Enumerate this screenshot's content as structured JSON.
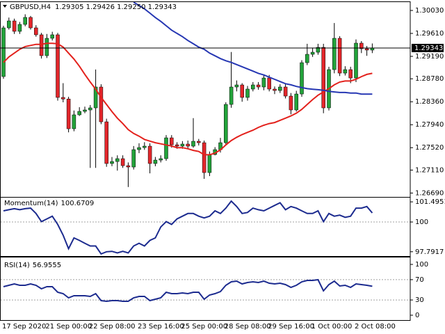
{
  "chart_data": [
    {
      "type": "candlestick",
      "title": "GBPUSD,H4",
      "ohlc_label": "1.29305 1.29426 1.29250 1.29343",
      "categories": [
        "17 Sep 2020",
        null,
        null,
        null,
        null,
        null,
        null,
        null,
        "21 Sep 00:00",
        null,
        null,
        null,
        null,
        null,
        null,
        null,
        "22 Sep 08:00",
        null,
        null,
        null,
        null,
        null,
        null,
        null,
        null,
        "23 Sep 16:00",
        null,
        null,
        null,
        null,
        null,
        null,
        null,
        "25 Sep 00:00",
        null,
        null,
        null,
        null,
        null,
        null,
        null,
        "28 Sep 08:00",
        null,
        null,
        null,
        null,
        null,
        null,
        null,
        "29 Sep 16:00",
        null,
        null,
        null,
        null,
        null,
        null,
        null,
        "1 Oct 00:00",
        null,
        null,
        null,
        null,
        null,
        null,
        null,
        "2 Oct 08:00",
        null,
        null,
        null
      ],
      "open": [
        1.28821,
        1.29712,
        1.29839,
        1.29648,
        1.29775,
        1.29903,
        1.29712,
        1.29585,
        1.29203,
        1.29521,
        1.29585,
        1.28439,
        1.2841,
        1.27866,
        1.28121,
        1.28184,
        1.2821,
        1.28248,
        1.2863,
        1.27993,
        1.2723,
        1.27267,
        1.27319,
        1.27191,
        1.27166,
        1.27484,
        1.27522,
        1.27548,
        1.2723,
        1.27293,
        1.27319,
        1.277,
        1.27573,
        1.27548,
        1.27586,
        1.27548,
        1.27637,
        1.27611,
        1.27064,
        1.27395,
        1.27484,
        1.27611,
        1.28311,
        1.2863,
        1.28668,
        1.28439,
        1.28592,
        1.28668,
        1.2863,
        1.28795,
        1.28592,
        1.28566,
        1.2863,
        1.28464,
        1.2821,
        1.28502,
        1.29075,
        1.29228,
        1.29266,
        1.29355,
        1.28248,
        1.28948,
        1.29521,
        1.28884,
        1.28948,
        1.28795,
        1.29432,
        1.2933,
        1.29305
      ],
      "high": [
        1.2975,
        1.299,
        1.2988,
        1.2982,
        1.2996,
        1.2993,
        1.2976,
        1.2962,
        1.296,
        1.2964,
        1.2962,
        1.287,
        1.2845,
        1.282,
        1.2826,
        1.2827,
        1.283,
        1.2895,
        1.2868,
        1.2805,
        1.2735,
        1.2738,
        1.2738,
        1.2725,
        1.2755,
        1.276,
        1.2762,
        1.276,
        1.2735,
        1.2738,
        1.2775,
        1.2775,
        1.2762,
        1.2764,
        1.2765,
        1.2806,
        1.2768,
        1.2765,
        1.2745,
        1.2753,
        1.277,
        1.2835,
        1.2927,
        1.2875,
        1.287,
        1.2865,
        1.2872,
        1.2872,
        1.2885,
        1.2885,
        1.2864,
        1.2868,
        1.287,
        1.2852,
        1.2856,
        1.2912,
        1.2942,
        1.2935,
        1.2942,
        1.2942,
        1.29,
        1.298,
        1.2956,
        1.2901,
        1.29,
        1.295,
        1.2947,
        1.2938,
        1.29426
      ],
      "low": [
        1.2878,
        1.2968,
        1.296,
        1.296,
        1.2974,
        1.2968,
        1.2955,
        1.2915,
        1.2916,
        1.2948,
        1.2838,
        1.2835,
        1.278,
        1.2782,
        1.281,
        1.2815,
        1.2715,
        1.2715,
        1.2795,
        1.2717,
        1.2718,
        1.271,
        1.2715,
        1.268,
        1.2712,
        1.2742,
        1.2748,
        1.2705,
        1.2718,
        1.2725,
        1.2728,
        1.2752,
        1.275,
        1.275,
        1.275,
        1.2752,
        1.2756,
        1.2695,
        1.27,
        1.2738,
        1.2743,
        1.2758,
        1.2825,
        1.2855,
        1.2836,
        1.2838,
        1.2855,
        1.2858,
        1.2857,
        1.2855,
        1.285,
        1.2852,
        1.2842,
        1.2813,
        1.2818,
        1.2845,
        1.2903,
        1.2918,
        1.2922,
        1.2815,
        1.282,
        1.2888,
        1.2883,
        1.2884,
        1.287,
        1.2872,
        1.2925,
        1.292,
        1.2925
      ],
      "close": [
        1.29712,
        1.29839,
        1.29648,
        1.29775,
        1.29903,
        1.29712,
        1.29585,
        1.29203,
        1.29521,
        1.29585,
        1.28439,
        1.2841,
        1.27866,
        1.28121,
        1.28184,
        1.2821,
        1.28248,
        1.2863,
        1.27993,
        1.2723,
        1.27267,
        1.27319,
        1.27191,
        1.27166,
        1.27484,
        1.27522,
        1.27548,
        1.2723,
        1.27293,
        1.27319,
        1.277,
        1.27573,
        1.27548,
        1.27586,
        1.27548,
        1.27637,
        1.27611,
        1.27064,
        1.27395,
        1.27484,
        1.27611,
        1.28311,
        1.2863,
        1.28668,
        1.28439,
        1.28592,
        1.28668,
        1.2863,
        1.28795,
        1.28592,
        1.28566,
        1.2863,
        1.28464,
        1.2821,
        1.28502,
        1.29075,
        1.29228,
        1.29266,
        1.29355,
        1.28248,
        1.28948,
        1.29521,
        1.28884,
        1.28948,
        1.28795,
        1.29432,
        1.2933,
        1.29305,
        1.29343
      ],
      "up_color": "#22a33a",
      "down_color": "#e3262b",
      "series": [
        {
          "color": "#e3211c",
          "values": [
            1.2908,
            1.2918,
            1.2925,
            1.2932,
            1.2937,
            1.2939,
            1.2941,
            1.2941,
            1.2943,
            1.2943,
            1.2942,
            1.2936,
            1.2925,
            1.2914,
            1.2901,
            1.2886,
            1.2872,
            1.2859,
            1.2844,
            1.2831,
            1.2818,
            1.2806,
            1.2796,
            1.2785,
            1.2778,
            1.2773,
            1.2767,
            1.2764,
            1.2761,
            1.2759,
            1.2757,
            1.2755,
            1.2752,
            1.2752,
            1.275,
            1.2747,
            1.2745,
            1.2739,
            1.2739,
            1.2742,
            1.2748,
            1.2757,
            1.2765,
            1.2771,
            1.2776,
            1.278,
            1.2784,
            1.2789,
            1.2793,
            1.2796,
            1.2798,
            1.2802,
            1.2806,
            1.281,
            1.2815,
            1.2822,
            1.2831,
            1.284,
            1.2848,
            1.2854,
            1.286,
            1.2867,
            1.2872,
            1.2874,
            1.2874,
            1.2877,
            1.2882,
            1.2886,
            1.2888
          ]
        },
        {
          "color": "#2637b3",
          "values": [
            null,
            null,
            null,
            null,
            null,
            null,
            null,
            null,
            null,
            null,
            null,
            null,
            null,
            null,
            null,
            null,
            null,
            null,
            null,
            null,
            null,
            null,
            null,
            null,
            1.3018,
            1.3012,
            1.3006,
            1.2998,
            1.299,
            1.2983,
            1.2975,
            1.2967,
            1.2961,
            1.2955,
            1.2948,
            1.2942,
            1.2936,
            1.2932,
            1.2925,
            1.292,
            1.2915,
            1.2911,
            1.2908,
            1.2904,
            1.29,
            1.2896,
            1.2892,
            1.2888,
            1.2885,
            1.2881,
            1.2877,
            1.2873,
            1.2869,
            1.2867,
            1.2864,
            1.2862,
            1.286,
            1.2859,
            1.2858,
            1.2857,
            1.2855,
            1.2854,
            1.2853,
            1.2853,
            1.2852,
            1.2852,
            1.285,
            1.285,
            1.285
          ]
        }
      ],
      "ylim": [
        1.26619,
        1.30183
      ],
      "yticks": [
        {
          "value": 1.3003,
          "label": "1.30030"
        },
        {
          "value": 1.2961,
          "label": "1.29610"
        },
        {
          "value": 1.2919,
          "label": "1.29190"
        },
        {
          "value": 1.2878,
          "label": "1.28780"
        },
        {
          "value": 1.2836,
          "label": "1.28360"
        },
        {
          "value": 1.2794,
          "label": "1.27940"
        },
        {
          "value": 1.2752,
          "label": "1.27520"
        },
        {
          "value": 1.2711,
          "label": "1.27110"
        },
        {
          "value": 1.2669,
          "label": "1.26690"
        }
      ]
    },
    {
      "type": "line",
      "title": "Momentum(14)",
      "series": [
        {
          "color": "#1c2b8f",
          "values": [
            100.83,
            100.91,
            100.99,
            100.91,
            100.99,
            101.03,
            100.63,
            100.03,
            100.23,
            100.43,
            99.82,
            99.02,
            98.02,
            98.82,
            98.63,
            98.42,
            98.22,
            98.22,
            97.63,
            97.79,
            97.82,
            97.7,
            97.82,
            97.7,
            98.22,
            98.42,
            98.22,
            98.63,
            98.82,
            99.63,
            100.03,
            99.82,
            100.23,
            100.43,
            100.63,
            100.63,
            100.43,
            100.3,
            100.43,
            100.83,
            100.63,
            101.03,
            101.55,
            101.15,
            100.63,
            100.71,
            101.03,
            100.91,
            100.83,
            101.03,
            101.23,
            101.43,
            100.91,
            101.15,
            101.03,
            100.83,
            100.63,
            100.63,
            100.83,
            100.03,
            100.63,
            100.43,
            100.51,
            100.35,
            100.43,
            101.03,
            101.03,
            101.15,
            100.6709
          ]
        }
      ],
      "ylim": [
        97.47,
        101.81
      ],
      "yticks": [
        101.4951,
        100,
        97.7917
      ],
      "levels": [
        100
      ]
    },
    {
      "type": "line",
      "title": "RSI(14)",
      "series": [
        {
          "color": "#1c2b8f",
          "values": [
            56.2,
            58.9,
            61.6,
            58.9,
            58.9,
            61.6,
            58.9,
            52.1,
            56.2,
            56.2,
            45.2,
            42.5,
            34.2,
            38.4,
            38.4,
            38.4,
            37.0,
            42.5,
            28.8,
            27.4,
            28.8,
            28.8,
            27.4,
            27.4,
            34.2,
            37.0,
            37.0,
            28.8,
            31.5,
            34.2,
            45.2,
            42.5,
            42.5,
            43.8,
            42.5,
            45.2,
            45.2,
            31.5,
            39.7,
            42.5,
            46.6,
            58.9,
            65.8,
            67.1,
            61.6,
            64.4,
            65.8,
            64.4,
            67.1,
            63.0,
            61.6,
            63.0,
            60.3,
            54.8,
            58.9,
            65.8,
            68.5,
            68.5,
            69.9,
            47.9,
            60.3,
            67.1,
            57.5,
            58.9,
            54.8,
            61.6,
            60.3,
            58.9,
            56.9555
          ]
        }
      ],
      "ylim": [
        -9.6,
        113.7
      ],
      "yticks": [
        100,
        70,
        30,
        0
      ],
      "levels": [
        70,
        30
      ]
    }
  ]
}
